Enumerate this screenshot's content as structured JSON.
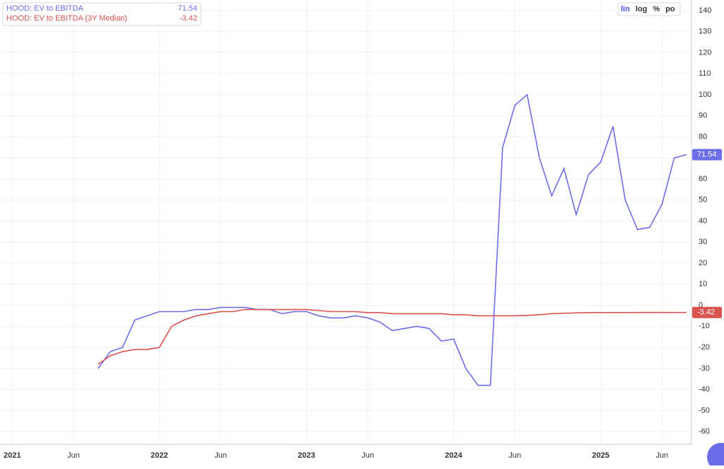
{
  "chart_data": {
    "type": "line",
    "x": [
      "2021-08",
      "2021-09",
      "2021-10",
      "2021-11",
      "2021-12",
      "2022-01",
      "2022-02",
      "2022-03",
      "2022-04",
      "2022-05",
      "2022-06",
      "2022-07",
      "2022-08",
      "2022-09",
      "2022-10",
      "2022-11",
      "2022-12",
      "2023-01",
      "2023-02",
      "2023-03",
      "2023-04",
      "2023-05",
      "2023-06",
      "2023-07",
      "2023-08",
      "2023-09",
      "2023-10",
      "2023-11",
      "2023-12",
      "2024-01",
      "2024-02",
      "2024-03",
      "2024-04",
      "2024-05",
      "2024-06",
      "2024-07",
      "2024-08",
      "2024-09",
      "2024-10",
      "2024-11",
      "2024-12",
      "2025-01",
      "2025-02",
      "2025-03",
      "2025-04",
      "2025-05",
      "2025-06",
      "2025-07",
      "2025-08"
    ],
    "series": [
      {
        "name": "HOOD: EV to EBITDA",
        "color": "#6b6ee8",
        "values": [
          -30,
          -22,
          -20,
          -7,
          -5,
          -3,
          -3,
          -3,
          -2,
          -2,
          -1,
          -1,
          -1,
          -2,
          -2,
          -4,
          -3,
          -3,
          -5,
          -6,
          -6,
          -5,
          -6,
          -8,
          -12,
          -11,
          -10,
          -11,
          -17,
          -16,
          -30,
          -38,
          -38,
          75,
          95,
          100,
          70,
          52,
          65,
          43,
          62,
          68,
          85,
          50,
          36,
          37,
          48,
          70,
          71.54
        ]
      },
      {
        "name": "HOOD: EV to EBITDA (3Y Median)",
        "color": "#d9534f",
        "values": [
          -28,
          -24,
          -22,
          -21,
          -21,
          -20,
          -10,
          -7,
          -5,
          -4,
          -3,
          -3,
          -2,
          -2,
          -2,
          -2,
          -2,
          -2,
          -2.5,
          -3,
          -3,
          -3,
          -3.5,
          -3.5,
          -4,
          -4,
          -4,
          -4,
          -4,
          -4.5,
          -4.5,
          -5,
          -5,
          -5,
          -5,
          -4.8,
          -4.5,
          -4,
          -3.8,
          -3.6,
          -3.5,
          -3.5,
          -3.5,
          -3.5,
          -3.4,
          -3.4,
          -3.4,
          -3.4,
          -3.42
        ]
      }
    ],
    "xlim": [
      "2020-12",
      "2025-08"
    ],
    "xticks": [
      {
        "value": "2021-01",
        "label": "2021"
      },
      {
        "value": "2021-06",
        "label": "Jun"
      },
      {
        "value": "2022-01",
        "label": "2022"
      },
      {
        "value": "2022-06",
        "label": "Jun"
      },
      {
        "value": "2023-01",
        "label": "2023"
      },
      {
        "value": "2023-06",
        "label": "Jun"
      },
      {
        "value": "2024-01",
        "label": "2024"
      },
      {
        "value": "2024-06",
        "label": "Jun"
      },
      {
        "value": "2025-01",
        "label": "2025"
      },
      {
        "value": "2025-06",
        "label": "Jun"
      }
    ],
    "ylim": [
      -66,
      145
    ],
    "yticks": [
      140,
      130,
      120,
      110,
      100,
      90,
      80,
      70,
      60,
      50,
      40,
      30,
      20,
      10,
      0,
      -10,
      -20,
      -30,
      -40,
      -50,
      -60
    ],
    "grid": true,
    "log_scale": false,
    "controls": [
      "lin",
      "log",
      "%",
      "po"
    ],
    "active_control": "lin"
  }
}
